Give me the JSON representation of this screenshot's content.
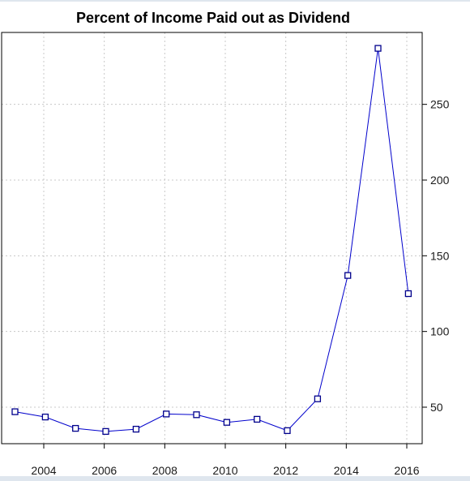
{
  "chart_data": {
    "type": "line",
    "title": "Percent of Income Paid out as Dividend",
    "xlabel": "",
    "ylabel": "",
    "x": [
      2003.05,
      2004.05,
      2005.05,
      2006.05,
      2007.05,
      2008.05,
      2009.05,
      2010.05,
      2011.05,
      2012.05,
      2013.05,
      2014.05,
      2015.05,
      2016.05
    ],
    "series": [
      {
        "values": [
          47,
          43.5,
          36,
          34,
          35.5,
          45.5,
          45,
          40,
          42,
          34.5,
          55.5,
          137,
          287,
          125
        ]
      }
    ],
    "xlim": [
      2003,
      2016.5
    ],
    "ylim": [
      25,
      290
    ],
    "x_ticks": [
      2004,
      2006,
      2008,
      2010,
      2012,
      2014,
      2016
    ],
    "x_tick_labels": [
      "2004",
      "2006",
      "2008",
      "2010",
      "2012",
      "2014",
      "2016"
    ],
    "y_ticks": [
      50,
      100,
      150,
      200,
      250
    ],
    "y_tick_labels": [
      "50",
      "100",
      "150",
      "200",
      "250"
    ],
    "y_axis_side": "right",
    "grid": true,
    "grid_style": "dotted",
    "marker": "open-square",
    "colors": {
      "line": "#0000cc",
      "marker": "#00008b",
      "grid": "#c8c8c8",
      "axis": "#000000"
    }
  }
}
